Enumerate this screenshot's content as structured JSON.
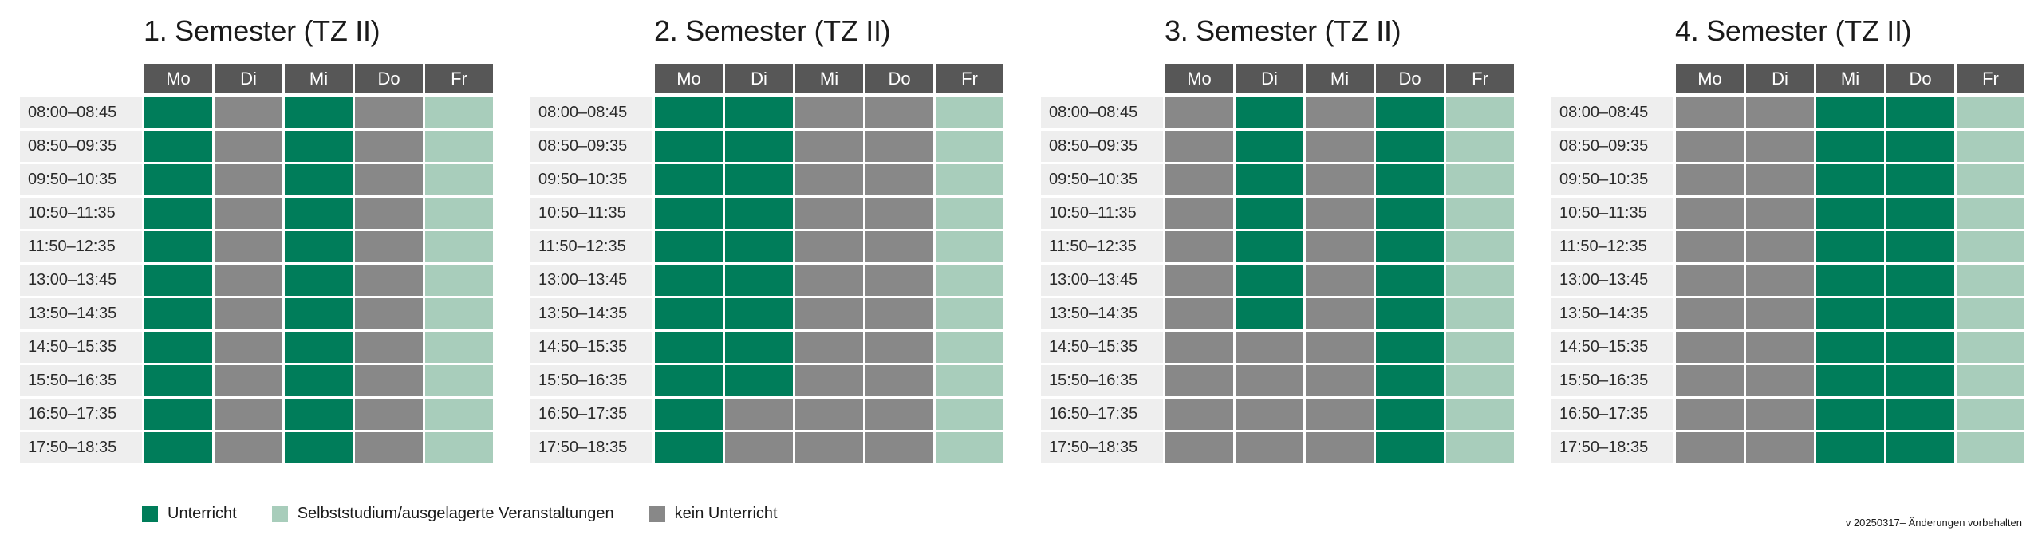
{
  "colors": {
    "unterricht": "#007d5a",
    "selbststudium": "#a8cdbb",
    "kein": "#888888",
    "header": "#575757",
    "time_bg": "#eeeeee"
  },
  "days": [
    "Mo",
    "Di",
    "Mi",
    "Do",
    "Fr"
  ],
  "times": [
    "08:00–08:45",
    "08:50–09:35",
    "09:50–10:35",
    "10:50–11:35",
    "11:50–12:35",
    "13:00–13:45",
    "13:50–14:35",
    "14:50–15:35",
    "15:50–16:35",
    "16:50–17:35",
    "17:50–18:35"
  ],
  "semesters": [
    {
      "title": "1. Semester (TZ II)",
      "schedule": [
        [
          "U",
          "K",
          "U",
          "K",
          "S"
        ],
        [
          "U",
          "K",
          "U",
          "K",
          "S"
        ],
        [
          "U",
          "K",
          "U",
          "K",
          "S"
        ],
        [
          "U",
          "K",
          "U",
          "K",
          "S"
        ],
        [
          "U",
          "K",
          "U",
          "K",
          "S"
        ],
        [
          "U",
          "K",
          "U",
          "K",
          "S"
        ],
        [
          "U",
          "K",
          "U",
          "K",
          "S"
        ],
        [
          "U",
          "K",
          "U",
          "K",
          "S"
        ],
        [
          "U",
          "K",
          "U",
          "K",
          "S"
        ],
        [
          "U",
          "K",
          "U",
          "K",
          "S"
        ],
        [
          "U",
          "K",
          "U",
          "K",
          "S"
        ]
      ]
    },
    {
      "title": "2. Semester (TZ II)",
      "schedule": [
        [
          "U",
          "U",
          "K",
          "K",
          "S"
        ],
        [
          "U",
          "U",
          "K",
          "K",
          "S"
        ],
        [
          "U",
          "U",
          "K",
          "K",
          "S"
        ],
        [
          "U",
          "U",
          "K",
          "K",
          "S"
        ],
        [
          "U",
          "U",
          "K",
          "K",
          "S"
        ],
        [
          "U",
          "U",
          "K",
          "K",
          "S"
        ],
        [
          "U",
          "U",
          "K",
          "K",
          "S"
        ],
        [
          "U",
          "U",
          "K",
          "K",
          "S"
        ],
        [
          "U",
          "U",
          "K",
          "K",
          "S"
        ],
        [
          "U",
          "K",
          "K",
          "K",
          "S"
        ],
        [
          "U",
          "K",
          "K",
          "K",
          "S"
        ]
      ]
    },
    {
      "title": "3. Semester (TZ II)",
      "schedule": [
        [
          "K",
          "U",
          "K",
          "U",
          "S"
        ],
        [
          "K",
          "U",
          "K",
          "U",
          "S"
        ],
        [
          "K",
          "U",
          "K",
          "U",
          "S"
        ],
        [
          "K",
          "U",
          "K",
          "U",
          "S"
        ],
        [
          "K",
          "U",
          "K",
          "U",
          "S"
        ],
        [
          "K",
          "U",
          "K",
          "U",
          "S"
        ],
        [
          "K",
          "U",
          "K",
          "U",
          "S"
        ],
        [
          "K",
          "K",
          "K",
          "U",
          "S"
        ],
        [
          "K",
          "K",
          "K",
          "U",
          "S"
        ],
        [
          "K",
          "K",
          "K",
          "U",
          "S"
        ],
        [
          "K",
          "K",
          "K",
          "U",
          "S"
        ]
      ]
    },
    {
      "title": "4. Semester (TZ II)",
      "schedule": [
        [
          "K",
          "K",
          "U",
          "U",
          "S"
        ],
        [
          "K",
          "K",
          "U",
          "U",
          "S"
        ],
        [
          "K",
          "K",
          "U",
          "U",
          "S"
        ],
        [
          "K",
          "K",
          "U",
          "U",
          "S"
        ],
        [
          "K",
          "K",
          "U",
          "U",
          "S"
        ],
        [
          "K",
          "K",
          "U",
          "U",
          "S"
        ],
        [
          "K",
          "K",
          "U",
          "U",
          "S"
        ],
        [
          "K",
          "K",
          "U",
          "U",
          "S"
        ],
        [
          "K",
          "K",
          "U",
          "U",
          "S"
        ],
        [
          "K",
          "K",
          "U",
          "U",
          "S"
        ],
        [
          "K",
          "K",
          "U",
          "U",
          "S"
        ]
      ]
    }
  ],
  "legend": [
    {
      "key": "U",
      "label": "Unterricht"
    },
    {
      "key": "S",
      "label": "Selbststudium/ausgelagerte Veranstaltungen"
    },
    {
      "key": "K",
      "label": "kein Unterricht"
    }
  ],
  "version_note": "v 20250317– Änderungen vorbehalten"
}
